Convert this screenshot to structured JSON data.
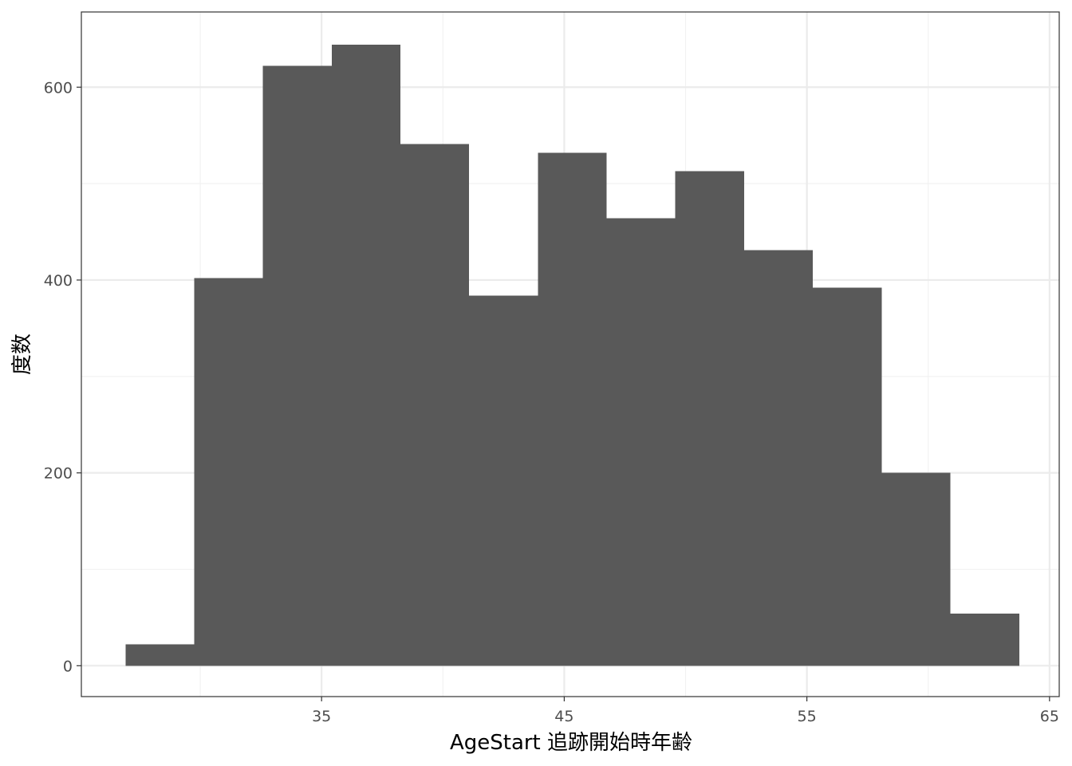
{
  "chart_data": {
    "type": "bar",
    "subtype": "histogram",
    "xlabel": "AgeStart 追跡開始時年齢",
    "ylabel": "度数",
    "xlim": [
      25.1,
      65.4
    ],
    "ylim": [
      -32,
      678
    ],
    "x_ticks": [
      35,
      45,
      55,
      65
    ],
    "x_tick_labels": [
      "35",
      "45",
      "55",
      "65"
    ],
    "y_ticks": [
      0,
      200,
      400,
      600
    ],
    "y_tick_labels": [
      "0",
      "200",
      "400",
      "600"
    ],
    "x_minor_gridlines": [
      30,
      40,
      50,
      60
    ],
    "y_minor_gridlines": [
      100,
      300,
      500
    ],
    "bin_width": 2.8333,
    "bins": [
      {
        "x_start": 26.92,
        "x_end": 29.75,
        "count": 22
      },
      {
        "x_start": 29.75,
        "x_end": 32.58,
        "count": 402
      },
      {
        "x_start": 32.58,
        "x_end": 35.42,
        "count": 622
      },
      {
        "x_start": 35.42,
        "x_end": 38.25,
        "count": 644
      },
      {
        "x_start": 38.25,
        "x_end": 41.08,
        "count": 541
      },
      {
        "x_start": 41.08,
        "x_end": 43.92,
        "count": 384
      },
      {
        "x_start": 43.92,
        "x_end": 46.75,
        "count": 532
      },
      {
        "x_start": 46.75,
        "x_end": 49.58,
        "count": 464
      },
      {
        "x_start": 49.58,
        "x_end": 52.42,
        "count": 513
      },
      {
        "x_start": 52.42,
        "x_end": 55.25,
        "count": 431
      },
      {
        "x_start": 55.25,
        "x_end": 58.08,
        "count": 392
      },
      {
        "x_start": 58.08,
        "x_end": 60.92,
        "count": 200
      },
      {
        "x_start": 60.92,
        "x_end": 63.75,
        "count": 54
      }
    ],
    "grid": true,
    "theme": "bw",
    "colors": {
      "bar_fill": "#595959",
      "panel_border": "#333333",
      "grid_major": "#ebebeb",
      "grid_minor": "#f2f2f2",
      "tick_text": "#4d4d4d",
      "tick_mark": "#333333",
      "background": "#ffffff"
    }
  }
}
